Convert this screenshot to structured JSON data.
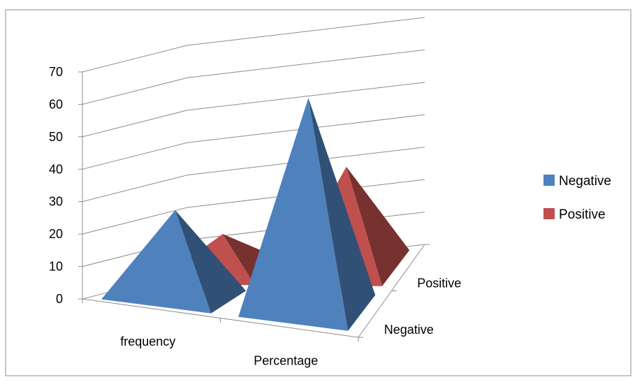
{
  "chart_data": {
    "type": "bar",
    "style": "3d-pyramid",
    "categories": [
      "frequency",
      "Percentage"
    ],
    "series": [
      {
        "name": "Negative",
        "values": [
          27,
          65
        ],
        "color": "#4F81BD"
      },
      {
        "name": "Positive",
        "values": [
          13,
          32
        ],
        "color": "#C0504D"
      }
    ],
    "depth_labels": [
      "Negative",
      "Positive"
    ],
    "ylim": [
      0,
      70
    ],
    "yticks": [
      "0",
      "10",
      "20",
      "30",
      "40",
      "50",
      "60",
      "70"
    ],
    "grid": true,
    "legend_position": "right"
  }
}
